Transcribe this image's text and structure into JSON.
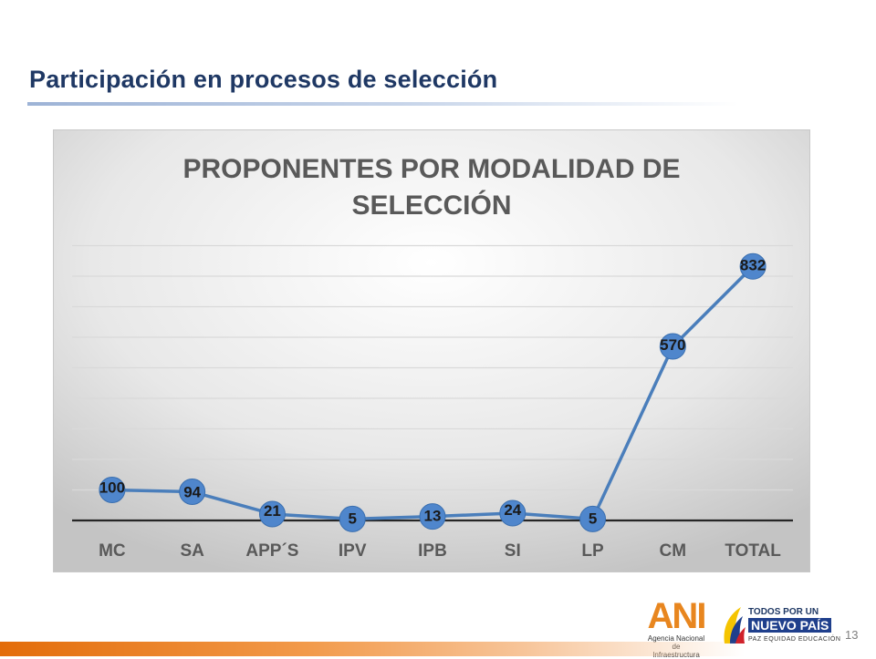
{
  "slide": {
    "title": "Participación en procesos de selección",
    "page_number": "13"
  },
  "logos": {
    "ani_mark": "ANI",
    "ani_sub_1": "Agencia Nacional de",
    "ani_sub_2": "Infraestructura",
    "pais_line1": "TODOS POR UN",
    "pais_line2": "NUEVO PAÍS",
    "pais_line3": "PAZ  EQUIDAD  EDUCACIÓN"
  },
  "colors": {
    "title": "#1f3864",
    "series": "#4a7ebb",
    "marker": "#4f86cc",
    "footer_accent": "#e36c09"
  },
  "chart_data": {
    "type": "line",
    "title": "PROPONENTES POR MODALIDAD DE SELECCIÓN",
    "title_lines": [
      "PROPONENTES POR MODALIDAD DE",
      "SELECCIÓN"
    ],
    "categories": [
      "MC",
      "SA",
      "APP´S",
      "IPV",
      "IPB",
      "SI",
      "LP",
      "CM",
      "TOTAL"
    ],
    "series": [
      {
        "values": [
          100,
          94,
          21,
          5,
          13,
          24,
          5,
          570,
          832
        ]
      }
    ],
    "data_labels": [
      "100",
      "94",
      "21",
      "5",
      "13",
      "24",
      "5",
      "570",
      "832"
    ],
    "ylim": [
      0,
      900
    ],
    "grid": true,
    "legend": "none",
    "xlabel": "",
    "ylabel": ""
  }
}
